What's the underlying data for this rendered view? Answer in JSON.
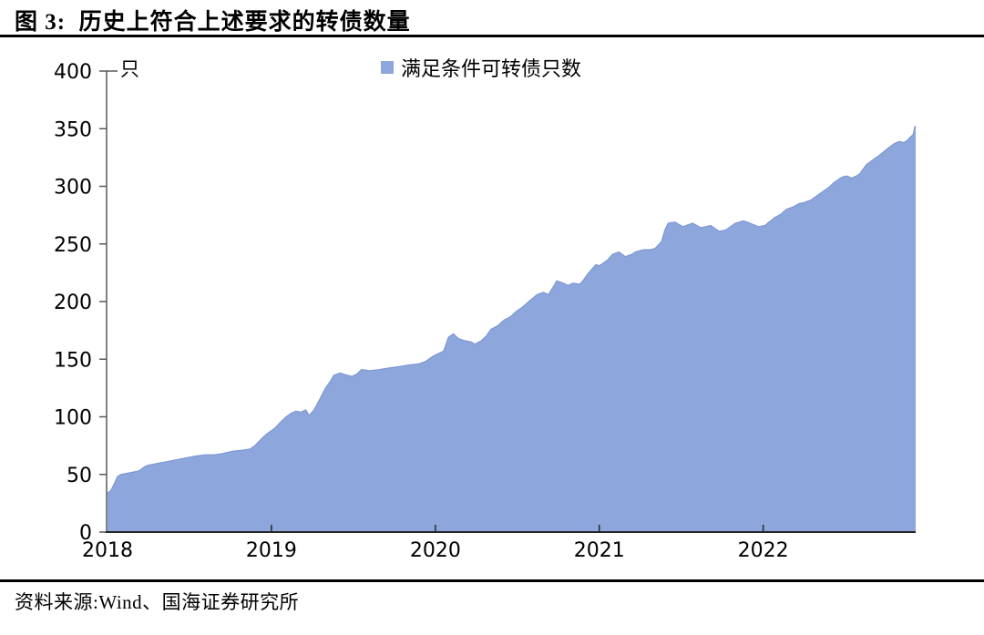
{
  "figure": {
    "title": "图 3:  历史上符合上述要求的转债数量",
    "source": "资料来源:Wind、国海证券研究所"
  },
  "chart_data": {
    "type": "area",
    "title": "历史上符合上述要求的转债数量",
    "unit_label": "只",
    "xlabel": "",
    "ylabel": "只",
    "legend_position": "top-center",
    "grid": false,
    "xlim": [
      2018.0,
      2022.93
    ],
    "ylim": [
      0,
      400
    ],
    "x_ticks": [
      2018,
      2019,
      2020,
      2021,
      2022
    ],
    "y_ticks": [
      0,
      50,
      100,
      150,
      200,
      250,
      300,
      350,
      400
    ],
    "colors": {
      "area_fill": "#8DA6DC",
      "area_stroke": "#7D98D4",
      "y_axis": "#595959",
      "x_axis": "#262626",
      "text": "#000000"
    },
    "series": [
      {
        "name": "满足条件可转债只数",
        "points": [
          [
            2018.0,
            34
          ],
          [
            2018.02,
            36
          ],
          [
            2018.045,
            43
          ],
          [
            2018.06,
            48
          ],
          [
            2018.08,
            50
          ],
          [
            2018.12,
            51
          ],
          [
            2018.19,
            53
          ],
          [
            2018.23,
            57
          ],
          [
            2018.25,
            58
          ],
          [
            2018.32,
            60
          ],
          [
            2018.36,
            61
          ],
          [
            2018.43,
            63
          ],
          [
            2018.5,
            65
          ],
          [
            2018.54,
            66
          ],
          [
            2018.6,
            67
          ],
          [
            2018.65,
            67
          ],
          [
            2018.7,
            68
          ],
          [
            2018.76,
            70
          ],
          [
            2018.82,
            71
          ],
          [
            2018.87,
            72
          ],
          [
            2018.9,
            75
          ],
          [
            2018.94,
            81
          ],
          [
            2018.97,
            85
          ],
          [
            2019.02,
            90
          ],
          [
            2019.06,
            96
          ],
          [
            2019.09,
            100
          ],
          [
            2019.12,
            103
          ],
          [
            2019.15,
            105
          ],
          [
            2019.18,
            104
          ],
          [
            2019.21,
            106
          ],
          [
            2019.23,
            101
          ],
          [
            2019.26,
            106
          ],
          [
            2019.29,
            114
          ],
          [
            2019.33,
            125
          ],
          [
            2019.36,
            131
          ],
          [
            2019.38,
            136
          ],
          [
            2019.42,
            138
          ],
          [
            2019.44,
            137
          ],
          [
            2019.49,
            135
          ],
          [
            2019.52,
            137
          ],
          [
            2019.55,
            141
          ],
          [
            2019.6,
            140
          ],
          [
            2019.66,
            141
          ],
          [
            2019.7,
            142
          ],
          [
            2019.75,
            143
          ],
          [
            2019.8,
            144
          ],
          [
            2019.84,
            145
          ],
          [
            2019.9,
            146
          ],
          [
            2019.94,
            148
          ],
          [
            2019.99,
            153
          ],
          [
            2020.05,
            157
          ],
          [
            2020.08,
            169
          ],
          [
            2020.11,
            172
          ],
          [
            2020.14,
            168
          ],
          [
            2020.18,
            166
          ],
          [
            2020.22,
            165
          ],
          [
            2020.24,
            163
          ],
          [
            2020.28,
            166
          ],
          [
            2020.31,
            170
          ],
          [
            2020.34,
            176
          ],
          [
            2020.38,
            179
          ],
          [
            2020.42,
            184
          ],
          [
            2020.46,
            187
          ],
          [
            2020.49,
            191
          ],
          [
            2020.53,
            195
          ],
          [
            2020.57,
            200
          ],
          [
            2020.62,
            206
          ],
          [
            2020.66,
            208
          ],
          [
            2020.69,
            206
          ],
          [
            2020.72,
            213
          ],
          [
            2020.74,
            218
          ],
          [
            2020.78,
            216
          ],
          [
            2020.81,
            214
          ],
          [
            2020.84,
            216
          ],
          [
            2020.88,
            215
          ],
          [
            2020.9,
            218
          ],
          [
            2020.93,
            224
          ],
          [
            2020.96,
            229
          ],
          [
            2020.98,
            232
          ],
          [
            2021.0,
            231
          ],
          [
            2021.03,
            234
          ],
          [
            2021.05,
            236
          ],
          [
            2021.08,
            241
          ],
          [
            2021.12,
            243
          ],
          [
            2021.16,
            239
          ],
          [
            2021.2,
            241
          ],
          [
            2021.22,
            243
          ],
          [
            2021.27,
            245
          ],
          [
            2021.31,
            245
          ],
          [
            2021.34,
            246
          ],
          [
            2021.38,
            252
          ],
          [
            2021.4,
            262
          ],
          [
            2021.42,
            268
          ],
          [
            2021.46,
            269
          ],
          [
            2021.51,
            265
          ],
          [
            2021.55,
            267
          ],
          [
            2021.57,
            268
          ],
          [
            2021.62,
            264
          ],
          [
            2021.68,
            266
          ],
          [
            2021.73,
            261
          ],
          [
            2021.77,
            262
          ],
          [
            2021.83,
            268
          ],
          [
            2021.88,
            270
          ],
          [
            2021.92,
            268
          ],
          [
            2021.97,
            265
          ],
          [
            2022.01,
            266
          ],
          [
            2022.07,
            273
          ],
          [
            2022.11,
            276
          ],
          [
            2022.14,
            280
          ],
          [
            2022.18,
            282
          ],
          [
            2022.22,
            285
          ],
          [
            2022.25,
            286
          ],
          [
            2022.29,
            288
          ],
          [
            2022.33,
            292
          ],
          [
            2022.36,
            295
          ],
          [
            2022.4,
            299
          ],
          [
            2022.43,
            303
          ],
          [
            2022.46,
            306
          ],
          [
            2022.48,
            308
          ],
          [
            2022.51,
            309
          ],
          [
            2022.54,
            307
          ],
          [
            2022.57,
            309
          ],
          [
            2022.59,
            311
          ],
          [
            2022.63,
            319
          ],
          [
            2022.67,
            323
          ],
          [
            2022.71,
            327
          ],
          [
            2022.76,
            333
          ],
          [
            2022.8,
            337
          ],
          [
            2022.83,
            339
          ],
          [
            2022.86,
            338
          ],
          [
            2022.88,
            340
          ],
          [
            2022.9,
            343
          ],
          [
            2022.915,
            345
          ],
          [
            2022.925,
            352
          ],
          [
            2022.93,
            352
          ]
        ]
      }
    ]
  }
}
